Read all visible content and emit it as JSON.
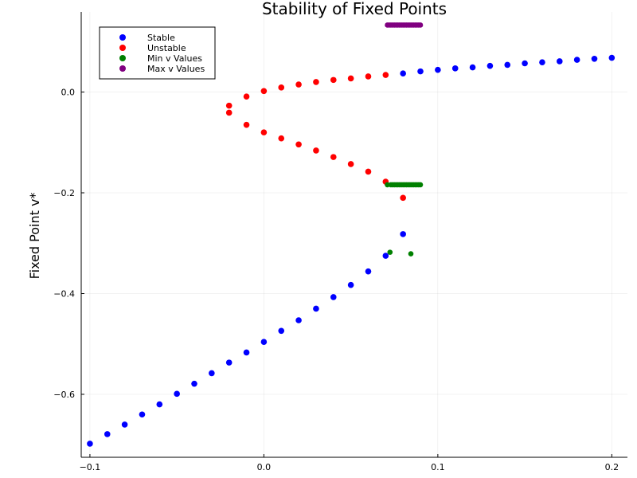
{
  "chart_data": {
    "type": "scatter",
    "title": "Stability of Fixed Points",
    "xlabel": "",
    "ylabel": "Fixed Point v*",
    "xlim": [
      -0.105,
      0.209
    ],
    "ylim": [
      -0.725,
      0.159
    ],
    "xticks": [
      -0.1,
      0.0,
      0.1,
      0.2
    ],
    "xtick_labels": [
      "−0.1",
      "0.0",
      "0.1",
      "0.2"
    ],
    "yticks": [
      0.0,
      -0.2,
      -0.4,
      -0.6
    ],
    "ytick_labels": [
      "0.0",
      "−0.2",
      "−0.4",
      "−0.6"
    ],
    "grid": true,
    "legend_position": "top-left",
    "series": [
      {
        "name": "Stable",
        "color": "#0000ff",
        "points": [
          [
            -0.1,
            -0.698
          ],
          [
            -0.09,
            -0.679
          ],
          [
            -0.08,
            -0.66
          ],
          [
            -0.07,
            -0.64
          ],
          [
            -0.06,
            -0.62
          ],
          [
            -0.05,
            -0.599
          ],
          [
            -0.04,
            -0.579
          ],
          [
            -0.03,
            -0.558
          ],
          [
            -0.02,
            -0.537
          ],
          [
            -0.01,
            -0.517
          ],
          [
            0.0,
            -0.496
          ],
          [
            0.01,
            -0.474
          ],
          [
            0.02,
            -0.453
          ],
          [
            0.03,
            -0.43
          ],
          [
            0.04,
            -0.407
          ],
          [
            0.05,
            -0.383
          ],
          [
            0.06,
            -0.356
          ],
          [
            0.07,
            -0.325
          ],
          [
            0.08,
            -0.282
          ],
          [
            0.08,
            0.037
          ],
          [
            0.09,
            0.041
          ],
          [
            0.1,
            0.044
          ],
          [
            0.11,
            0.047
          ],
          [
            0.12,
            0.049
          ],
          [
            0.13,
            0.052
          ],
          [
            0.14,
            0.054
          ],
          [
            0.15,
            0.057
          ],
          [
            0.16,
            0.059
          ],
          [
            0.17,
            0.061
          ],
          [
            0.18,
            0.064
          ],
          [
            0.19,
            0.066
          ],
          [
            0.2,
            0.068
          ]
        ]
      },
      {
        "name": "Unstable",
        "color": "#ff0000",
        "points": [
          [
            -0.02,
            -0.027
          ],
          [
            -0.01,
            -0.009
          ],
          [
            0.0,
            0.002
          ],
          [
            0.01,
            0.009
          ],
          [
            0.02,
            0.015
          ],
          [
            0.03,
            0.02
          ],
          [
            0.04,
            0.024
          ],
          [
            0.05,
            0.027
          ],
          [
            0.06,
            0.031
          ],
          [
            0.07,
            0.034
          ],
          [
            -0.02,
            -0.041
          ],
          [
            -0.01,
            -0.065
          ],
          [
            0.0,
            -0.08
          ],
          [
            0.01,
            -0.092
          ],
          [
            0.02,
            -0.104
          ],
          [
            0.03,
            -0.116
          ],
          [
            0.04,
            -0.129
          ],
          [
            0.05,
            -0.143
          ],
          [
            0.06,
            -0.158
          ],
          [
            0.07,
            -0.178
          ],
          [
            0.08,
            -0.21
          ]
        ]
      },
      {
        "name": "Min v Values",
        "color": "#008000",
        "points": [
          [
            0.071,
            -0.184
          ],
          [
            0.073,
            -0.184
          ],
          [
            0.074,
            -0.184
          ],
          [
            0.075,
            -0.184
          ],
          [
            0.076,
            -0.184
          ],
          [
            0.077,
            -0.184
          ],
          [
            0.078,
            -0.184
          ],
          [
            0.079,
            -0.184
          ],
          [
            0.08,
            -0.184
          ],
          [
            0.081,
            -0.184
          ],
          [
            0.082,
            -0.184
          ],
          [
            0.083,
            -0.184
          ],
          [
            0.084,
            -0.184
          ],
          [
            0.085,
            -0.184
          ],
          [
            0.086,
            -0.184
          ],
          [
            0.087,
            -0.184
          ],
          [
            0.088,
            -0.184
          ],
          [
            0.089,
            -0.184
          ],
          [
            0.09,
            -0.184
          ],
          [
            0.0725,
            -0.318
          ],
          [
            0.0845,
            -0.321
          ]
        ]
      },
      {
        "name": "Max v Values",
        "color": "#800080",
        "points": [
          [
            0.071,
            0.133
          ],
          [
            0.072,
            0.133
          ],
          [
            0.073,
            0.133
          ],
          [
            0.074,
            0.133
          ],
          [
            0.075,
            0.133
          ],
          [
            0.076,
            0.133
          ],
          [
            0.077,
            0.133
          ],
          [
            0.078,
            0.133
          ],
          [
            0.079,
            0.133
          ],
          [
            0.08,
            0.133
          ],
          [
            0.081,
            0.133
          ],
          [
            0.082,
            0.133
          ],
          [
            0.083,
            0.133
          ],
          [
            0.084,
            0.133
          ],
          [
            0.085,
            0.133
          ],
          [
            0.086,
            0.133
          ],
          [
            0.087,
            0.133
          ],
          [
            0.088,
            0.133
          ],
          [
            0.089,
            0.133
          ],
          [
            0.09,
            0.133
          ]
        ]
      }
    ]
  }
}
